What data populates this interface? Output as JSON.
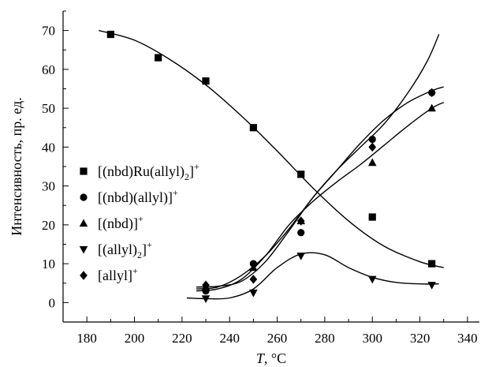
{
  "chart_data": {
    "type": "scatter",
    "title": "",
    "xlabel": {
      "italic": "T",
      "rest": ", °C"
    },
    "ylabel": "Интенсивность, пр. ед.",
    "xlim": [
      170,
      345
    ],
    "ylim": [
      -5,
      75
    ],
    "x_ticks": [
      180,
      200,
      220,
      240,
      260,
      280,
      300,
      320,
      340
    ],
    "y_ticks": [
      0,
      10,
      20,
      30,
      40,
      50,
      60,
      70
    ],
    "grid": false,
    "legend_position": "left-middle",
    "series": [
      {
        "name_parts": {
          "main": "[(nbd)Ru(allyl)",
          "sub": "2",
          "after": "]",
          "sup": "+"
        },
        "marker": "square",
        "points": [
          [
            190,
            69
          ],
          [
            210,
            63
          ],
          [
            230,
            57
          ],
          [
            250,
            45
          ],
          [
            270,
            33
          ],
          [
            300,
            22
          ],
          [
            325,
            10
          ]
        ],
        "curve": [
          [
            185,
            70
          ],
          [
            200,
            67.5
          ],
          [
            215,
            62.5
          ],
          [
            230,
            56
          ],
          [
            245,
            48
          ],
          [
            260,
            39
          ],
          [
            275,
            29.5
          ],
          [
            290,
            21
          ],
          [
            305,
            14.5
          ],
          [
            320,
            10.5
          ],
          [
            330,
            9
          ]
        ]
      },
      {
        "name_parts": {
          "main": "[(nbd)(allyl)]",
          "sub": "",
          "after": "",
          "sup": "+"
        },
        "marker": "circle",
        "points": [
          [
            230,
            3
          ],
          [
            250,
            10
          ],
          [
            270,
            18
          ],
          [
            300,
            42
          ],
          [
            325,
            54
          ]
        ],
        "curve": [
          [
            226,
            3.5
          ],
          [
            235,
            4
          ],
          [
            245,
            7
          ],
          [
            255,
            12
          ],
          [
            265,
            19
          ],
          [
            275,
            27
          ],
          [
            285,
            34
          ],
          [
            295,
            41
          ],
          [
            305,
            47
          ],
          [
            315,
            51.5
          ],
          [
            325,
            54.5
          ],
          [
            330,
            55.5
          ]
        ]
      },
      {
        "name_parts": {
          "main": "[(nbd)]",
          "sub": "",
          "after": "",
          "sup": "+"
        },
        "marker": "triangle-up",
        "points": [
          [
            230,
            4
          ],
          [
            250,
            9
          ],
          [
            270,
            21
          ],
          [
            300,
            36
          ],
          [
            325,
            50
          ]
        ],
        "curve": [
          [
            226,
            3
          ],
          [
            235,
            3.5
          ],
          [
            245,
            6
          ],
          [
            255,
            12
          ],
          [
            265,
            20
          ],
          [
            275,
            26
          ],
          [
            285,
            31
          ],
          [
            295,
            35.5
          ],
          [
            305,
            40.5
          ],
          [
            315,
            45.5
          ],
          [
            325,
            50
          ],
          [
            330,
            51.5
          ]
        ]
      },
      {
        "name_parts": {
          "main": "[(allyl)",
          "sub": "2",
          "after": "]",
          "sup": "+"
        },
        "marker": "triangle-down",
        "points": [
          [
            230,
            1
          ],
          [
            250,
            2.5
          ],
          [
            270,
            12
          ],
          [
            300,
            6
          ],
          [
            325,
            4.5
          ]
        ],
        "curve": [
          [
            222,
            1.2
          ],
          [
            230,
            1
          ],
          [
            240,
            1.2
          ],
          [
            250,
            3.5
          ],
          [
            260,
            9
          ],
          [
            270,
            12.5
          ],
          [
            280,
            12.3
          ],
          [
            290,
            9
          ],
          [
            300,
            6.5
          ],
          [
            310,
            5.2
          ],
          [
            320,
            4.8
          ],
          [
            328,
            4.8
          ]
        ]
      },
      {
        "name_parts": {
          "main": "[allyl]",
          "sub": "",
          "after": "",
          "sup": "+"
        },
        "marker": "diamond",
        "points": [
          [
            230,
            4.5
          ],
          [
            250,
            6
          ],
          [
            270,
            21
          ],
          [
            300,
            40
          ],
          [
            325,
            54
          ]
        ],
        "curve": [
          [
            226,
            4
          ],
          [
            235,
            4.2
          ],
          [
            245,
            5.5
          ],
          [
            255,
            10.5
          ],
          [
            265,
            18.5
          ],
          [
            275,
            27
          ],
          [
            285,
            34
          ],
          [
            295,
            40
          ],
          [
            305,
            46
          ],
          [
            315,
            54
          ],
          [
            323,
            62
          ],
          [
            328,
            69
          ]
        ]
      }
    ]
  }
}
